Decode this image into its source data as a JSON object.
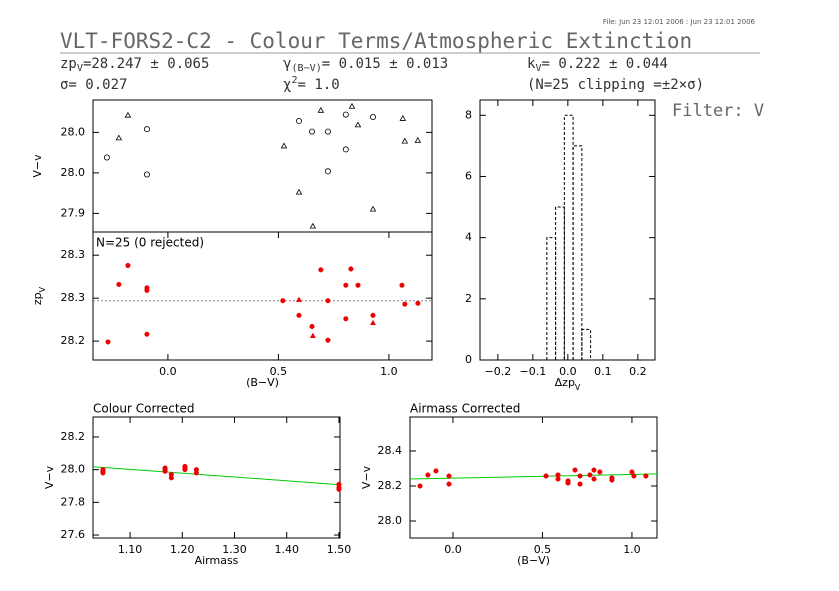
{
  "header": {
    "file": "File: Jun 23 12:01 2006 : Jun 23 12:01 2006",
    "title": "VLT-FORS2-C2 - Colour Terms/Atmospheric Extinction",
    "zp": [
      "zp",
      "V",
      "=28.247 ± 0.065"
    ],
    "sigma": "σ= 0.027",
    "gamma": [
      "γ",
      "(B−V)",
      "= 0.015 ± 0.013"
    ],
    "chi": [
      "χ",
      "2",
      "=  1.0"
    ],
    "k": [
      "k",
      "V",
      "= 0.222 ± 0.044"
    ],
    "clip": "(N=25 clipping =±2×σ)",
    "filter": "Filter: V"
  },
  "chart_data": [
    {
      "type": "scatter",
      "ylabel": "V−v",
      "xlim": [
        -0.339,
        1.195
      ],
      "ylim": [
        27.877,
        28.04
      ],
      "yticks": [
        {
          "value": 28.0,
          "label": "28.0"
        },
        {
          "value": 27.95,
          "label": "28.0"
        },
        {
          "value": 27.9,
          "label": "27.9"
        }
      ],
      "series": [
        {
          "marker": "circle",
          "color": "#000000",
          "filled": false,
          "x": [
            -0.276,
            -0.095,
            -0.095,
            0.593,
            0.652,
            0.724,
            0.724,
            0.805,
            0.805,
            0.928
          ],
          "values": [
            27.969,
            28.004,
            27.948,
            28.014,
            28.001,
            28.001,
            27.952,
            27.979,
            28.022,
            28.019
          ]
        },
        {
          "marker": "triangle",
          "color": "#000000",
          "filled": false,
          "x": [
            -0.181,
            -0.222,
            0.525,
            0.593,
            0.656,
            0.692,
            0.833,
            0.86,
            0.928,
            1.063,
            1.072,
            1.131
          ],
          "values": [
            28.021,
            27.993,
            27.983,
            27.926,
            27.884,
            28.027,
            28.032,
            28.009,
            27.905,
            28.017,
            27.989,
            27.99
          ]
        }
      ]
    },
    {
      "type": "scatter",
      "ylabel": [
        "zp",
        "V"
      ],
      "xlabel": "(B−V)",
      "annotation": "N=25 (0 rejected)",
      "hline": 28.247,
      "xlim": [
        -0.339,
        1.195
      ],
      "ylim": [
        28.178,
        28.327
      ],
      "xticks": [
        {
          "value": 0,
          "label": "0.0"
        },
        0.5,
        {
          "value": 1,
          "label": "1.0"
        }
      ],
      "yticks": [
        {
          "value": 28.3,
          "label": "28.3"
        },
        {
          "value": 28.25,
          "label": "28.3"
        },
        {
          "value": 28.2,
          "label": "28.2"
        }
      ],
      "series": [
        {
          "marker": "circle",
          "color": "#ee0000",
          "filled": true,
          "x": [
            -0.271,
            -0.222,
            -0.181,
            -0.095,
            -0.095,
            -0.095,
            0.52,
            0.593,
            0.652,
            0.692,
            0.724,
            0.724,
            0.805,
            0.828,
            0.86,
            0.805,
            0.928,
            1.059,
            1.072,
            1.131
          ],
          "values": [
            28.199,
            28.266,
            28.288,
            28.262,
            28.259,
            28.208,
            28.247,
            28.23,
            28.217,
            28.283,
            28.247,
            28.201,
            28.265,
            28.284,
            28.265,
            28.226,
            28.23,
            28.265,
            28.243,
            28.244
          ]
        },
        {
          "marker": "triangle",
          "color": "#ee0000",
          "filled": true,
          "x": [
            0.593,
            0.656,
            0.928
          ],
          "values": [
            28.248,
            28.206,
            28.221
          ]
        }
      ]
    },
    {
      "type": "histogram",
      "xlabel": [
        "Δzp",
        "V"
      ],
      "bins": [
        -0.06,
        -0.035,
        -0.01,
        0.015,
        0.04,
        0.065
      ],
      "counts": [
        4,
        5,
        8,
        7,
        1
      ],
      "xlim": [
        -0.251,
        0.249
      ],
      "ylim": [
        0,
        8.5
      ],
      "xticks": [
        {
          "value": -0.2,
          "label": "−0.2"
        },
        {
          "value": -0.1,
          "label": "−0.1"
        },
        {
          "value": 0,
          "label": "0.0"
        },
        0.1,
        0.2
      ],
      "yticks": [
        0,
        2,
        4,
        6,
        8
      ]
    },
    {
      "type": "scatter",
      "title": "Colour Corrected",
      "xlabel": "Airmass",
      "ylabel": "V−v",
      "xlim": [
        1.029,
        1.502
      ],
      "ylim": [
        27.582,
        28.322
      ],
      "xticks": [
        {
          "value": 1.1,
          "label": "1.10"
        },
        {
          "value": 1.2,
          "label": "1.20"
        },
        {
          "value": 1.3,
          "label": "1.30"
        },
        {
          "value": 1.4,
          "label": "1.40"
        },
        {
          "value": 1.5,
          "label": "1.50"
        }
      ],
      "yticks": [
        {
          "value": 28.2,
          "label": "28.2"
        },
        {
          "value": 28.0,
          "label": "28.0"
        },
        {
          "value": 27.8,
          "label": "27.8"
        },
        {
          "value": 27.6,
          "label": "27.6"
        }
      ],
      "fit": {
        "color": "#00cc00",
        "x": [
          1.029,
          1.502
        ],
        "values": [
          28.018,
          27.908
        ]
      },
      "series": [
        {
          "marker": "circle",
          "color": "#ee0000",
          "filled": true,
          "x": [
            1.048,
            1.048,
            1.048,
            1.167,
            1.167,
            1.167,
            1.179,
            1.179,
            1.205,
            1.205,
            1.205,
            1.227,
            1.227,
            1.5,
            1.5,
            1.5
          ],
          "values": [
            28.0,
            27.99,
            27.98,
            28.01,
            28.0,
            27.99,
            27.97,
            27.95,
            28.02,
            28.01,
            28.0,
            28.0,
            27.98,
            27.91,
            27.89,
            27.88
          ]
        }
      ]
    },
    {
      "type": "scatter",
      "title": "Airmass Corrected",
      "xlabel": "(B−V)",
      "ylabel": "V−v",
      "xlim": [
        -0.24,
        1.14
      ],
      "ylim": [
        27.903,
        28.594
      ],
      "xticks": [
        {
          "value": 0,
          "label": "0.0"
        },
        0.5,
        {
          "value": 1,
          "label": "1.0"
        }
      ],
      "yticks": [
        {
          "value": 28.4,
          "label": "28.4"
        },
        {
          "value": 28.2,
          "label": "28.2"
        },
        {
          "value": 28.0,
          "label": "28.0"
        }
      ],
      "fit": {
        "color": "#00cc00",
        "x": [
          -0.24,
          1.14
        ],
        "values": [
          28.24,
          28.269
        ]
      },
      "series": [
        {
          "marker": "circle",
          "color": "#ee0000",
          "filled": true,
          "x": [
            -0.184,
            -0.14,
            -0.095,
            -0.022,
            -0.022,
            0.52,
            0.587,
            0.587,
            0.643,
            0.643,
            0.682,
            0.71,
            0.71,
            0.765,
            0.788,
            0.821,
            0.788,
            0.888,
            0.888,
            1.0,
            1.011,
            1.078
          ],
          "values": [
            28.2,
            28.263,
            28.286,
            28.257,
            28.211,
            28.257,
            28.263,
            28.24,
            28.229,
            28.217,
            28.291,
            28.211,
            28.257,
            28.263,
            28.291,
            28.28,
            28.24,
            28.246,
            28.234,
            28.28,
            28.257,
            28.257
          ]
        }
      ]
    }
  ]
}
